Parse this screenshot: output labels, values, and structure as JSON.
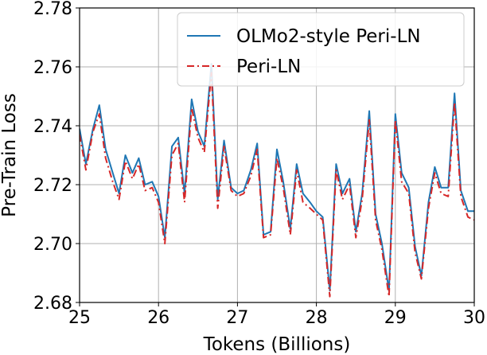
{
  "chart_data": {
    "type": "line",
    "title": "",
    "xlabel": "Tokens (Billions)",
    "ylabel": "Pre-Train Loss",
    "xlim": [
      25,
      30
    ],
    "ylim": [
      2.68,
      2.78
    ],
    "xticks": [
      25,
      26,
      27,
      28,
      29,
      30
    ],
    "xtick_labels": [
      "25",
      "26",
      "27",
      "28",
      "29",
      "30"
    ],
    "yticks": [
      2.68,
      2.7,
      2.72,
      2.74,
      2.76,
      2.78
    ],
    "ytick_labels": [
      "2.68",
      "2.70",
      "2.72",
      "2.74",
      "2.76",
      "2.78"
    ],
    "grid": true,
    "legend_position": "top-right",
    "x": [
      25.0,
      25.08,
      25.17,
      25.25,
      25.33,
      25.42,
      25.5,
      25.58,
      25.67,
      25.75,
      25.83,
      25.92,
      26.0,
      26.08,
      26.17,
      26.25,
      26.33,
      26.42,
      26.5,
      26.58,
      26.67,
      26.75,
      26.83,
      26.92,
      27.0,
      27.08,
      27.17,
      27.25,
      27.33,
      27.42,
      27.5,
      27.58,
      27.67,
      27.75,
      27.83,
      27.92,
      28.0,
      28.08,
      28.17,
      28.25,
      28.33,
      28.42,
      28.5,
      28.58,
      28.67,
      28.75,
      28.83,
      28.92,
      29.0,
      29.08,
      29.17,
      29.25,
      29.33,
      29.42,
      29.5,
      29.58,
      29.67,
      29.75,
      29.83,
      29.92,
      30.0
    ],
    "series": [
      {
        "name": "OLMo2-style Peri-LN",
        "color": "#1f77b4",
        "linestyle": "solid",
        "values": [
          2.739,
          2.727,
          2.739,
          2.747,
          2.732,
          2.724,
          2.717,
          2.73,
          2.724,
          2.729,
          2.72,
          2.721,
          2.716,
          2.702,
          2.733,
          2.736,
          2.717,
          2.749,
          2.738,
          2.733,
          2.761,
          2.715,
          2.735,
          2.719,
          2.717,
          2.718,
          2.725,
          2.734,
          2.703,
          2.704,
          2.732,
          2.721,
          2.705,
          2.727,
          2.717,
          2.714,
          2.711,
          2.709,
          2.684,
          2.727,
          2.717,
          2.722,
          2.704,
          2.717,
          2.745,
          2.71,
          2.7,
          2.684,
          2.744,
          2.724,
          2.719,
          2.699,
          2.689,
          2.714,
          2.726,
          2.719,
          2.719,
          2.751,
          2.718,
          2.711,
          2.711
        ]
      },
      {
        "name": "Peri-LN",
        "color": "#d62728",
        "linestyle": "dashdot",
        "values": [
          2.737,
          2.725,
          2.738,
          2.744,
          2.729,
          2.721,
          2.715,
          2.728,
          2.722,
          2.727,
          2.718,
          2.719,
          2.714,
          2.7,
          2.73,
          2.734,
          2.714,
          2.746,
          2.736,
          2.731,
          2.758,
          2.712,
          2.733,
          2.718,
          2.716,
          2.717,
          2.723,
          2.732,
          2.702,
          2.703,
          2.729,
          2.719,
          2.703,
          2.725,
          2.714,
          2.712,
          2.71,
          2.708,
          2.682,
          2.725,
          2.715,
          2.72,
          2.702,
          2.715,
          2.742,
          2.708,
          2.698,
          2.682,
          2.742,
          2.721,
          2.717,
          2.697,
          2.688,
          2.712,
          2.724,
          2.717,
          2.716,
          2.748,
          2.716,
          2.709,
          2.708
        ]
      }
    ]
  }
}
